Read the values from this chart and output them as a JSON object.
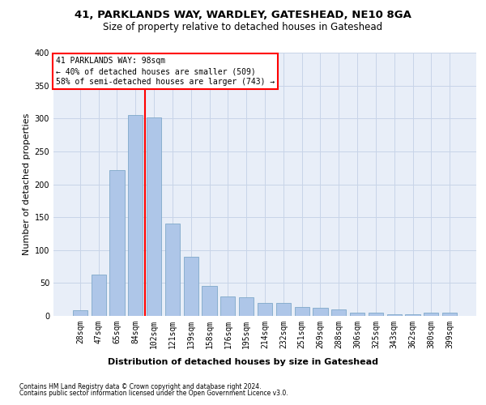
{
  "title1": "41, PARKLANDS WAY, WARDLEY, GATESHEAD, NE10 8GA",
  "title2": "Size of property relative to detached houses in Gateshead",
  "xlabel": "Distribution of detached houses by size in Gateshead",
  "ylabel": "Number of detached properties",
  "categories": [
    "28sqm",
    "47sqm",
    "65sqm",
    "84sqm",
    "102sqm",
    "121sqm",
    "139sqm",
    "158sqm",
    "176sqm",
    "195sqm",
    "214sqm",
    "232sqm",
    "251sqm",
    "269sqm",
    "288sqm",
    "306sqm",
    "325sqm",
    "343sqm",
    "362sqm",
    "380sqm",
    "399sqm"
  ],
  "values": [
    9,
    63,
    222,
    305,
    302,
    140,
    90,
    46,
    30,
    28,
    20,
    20,
    14,
    12,
    10,
    5,
    5,
    3,
    3,
    5,
    5
  ],
  "bar_color": "#aec6e8",
  "bar_edgecolor": "#7fa8c9",
  "vline_color": "red",
  "annotation_title": "41 PARKLANDS WAY: 98sqm",
  "annotation_line1": "← 40% of detached houses are smaller (509)",
  "annotation_line2": "58% of semi-detached houses are larger (743) →",
  "annotation_box_color": "white",
  "annotation_box_edgecolor": "red",
  "footer1": "Contains HM Land Registry data © Crown copyright and database right 2024.",
  "footer2": "Contains public sector information licensed under the Open Government Licence v3.0.",
  "ylim": [
    0,
    400
  ],
  "yticks": [
    0,
    50,
    100,
    150,
    200,
    250,
    300,
    350,
    400
  ],
  "grid_color": "#c8d4e8",
  "background_color": "#e8eef8",
  "title1_fontsize": 9.5,
  "title2_fontsize": 8.5,
  "xlabel_fontsize": 8,
  "ylabel_fontsize": 8,
  "tick_fontsize": 7,
  "annotation_fontsize": 7,
  "footer_fontsize": 5.5
}
